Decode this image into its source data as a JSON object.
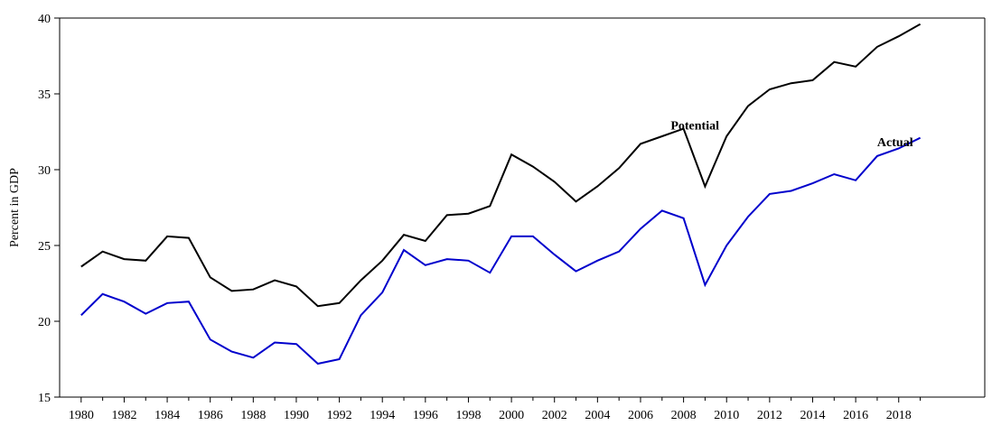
{
  "chart_data": {
    "type": "line",
    "title": "",
    "xlabel": "",
    "ylabel": "Percent in GDP",
    "xlim": [
      1979,
      2022
    ],
    "ylim": [
      15,
      40
    ],
    "yticks": [
      15,
      20,
      25,
      30,
      35,
      40
    ],
    "xticks": [
      1980,
      1982,
      1984,
      1986,
      1988,
      1990,
      1992,
      1994,
      1996,
      1998,
      2000,
      2002,
      2004,
      2006,
      2008,
      2010,
      2012,
      2014,
      2016,
      2018
    ],
    "grid": false,
    "legend": "none",
    "x": [
      1980,
      1981,
      1982,
      1983,
      1984,
      1985,
      1986,
      1987,
      1988,
      1989,
      1990,
      1991,
      1992,
      1993,
      1994,
      1995,
      1996,
      1997,
      1998,
      1999,
      2000,
      2001,
      2002,
      2003,
      2004,
      2005,
      2006,
      2007,
      2008,
      2009,
      2010,
      2011,
      2012,
      2013,
      2014,
      2015,
      2016,
      2017,
      2018,
      2019
    ],
    "series": [
      {
        "name": "Potential",
        "color": "#000000",
        "values": [
          23.6,
          24.6,
          24.1,
          24.0,
          25.6,
          25.5,
          22.9,
          22.0,
          22.1,
          22.7,
          22.3,
          21.0,
          21.2,
          22.7,
          24.0,
          25.7,
          25.3,
          27.0,
          27.1,
          27.6,
          31.0,
          30.2,
          29.2,
          27.9,
          28.9,
          30.1,
          31.7,
          32.2,
          32.7,
          28.9,
          32.2,
          34.2,
          35.3,
          35.7,
          35.9,
          37.1,
          36.8,
          38.1,
          38.8,
          39.6
        ]
      },
      {
        "name": "Actual",
        "color": "#0000cc",
        "values": [
          20.4,
          21.8,
          21.3,
          20.5,
          21.2,
          21.3,
          18.8,
          18.0,
          17.6,
          18.6,
          18.5,
          17.2,
          17.5,
          20.4,
          21.9,
          24.7,
          23.7,
          24.1,
          24.0,
          23.2,
          25.6,
          25.6,
          24.4,
          23.3,
          24.0,
          24.6,
          26.1,
          27.3,
          26.8,
          22.4,
          25.0,
          26.9,
          28.4,
          28.6,
          29.1,
          29.7,
          29.3,
          30.9,
          31.4,
          32.1
        ]
      }
    ]
  }
}
